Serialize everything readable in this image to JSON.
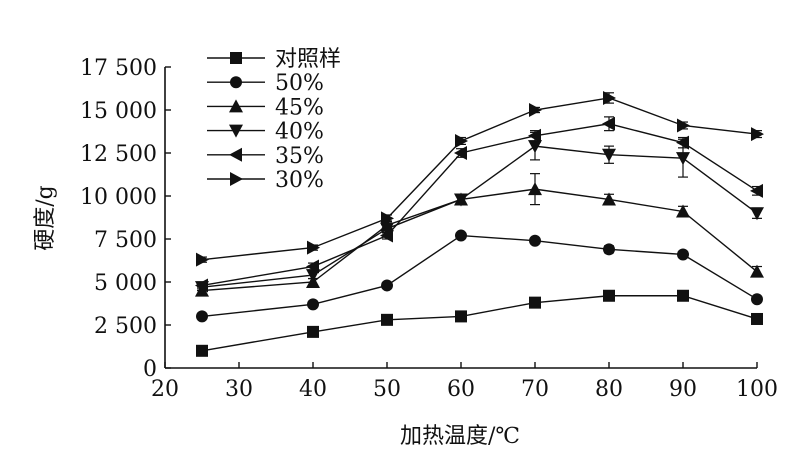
{
  "chart_data": {
    "type": "line",
    "title": "",
    "xlabel": "加热温度/℃",
    "ylabel": "硬度/g",
    "x": [
      25,
      40,
      50,
      60,
      70,
      80,
      90,
      100
    ],
    "xlim": [
      20,
      100
    ],
    "ylim": [
      0,
      17500
    ],
    "x_ticks": [
      20,
      30,
      40,
      50,
      60,
      70,
      80,
      90,
      100
    ],
    "x_tick_labels": [
      "20",
      "30",
      "40",
      "50",
      "60",
      "70",
      "80",
      "90",
      "100"
    ],
    "y_ticks": [
      0,
      2500,
      5000,
      7500,
      10000,
      12500,
      15000,
      17500
    ],
    "y_tick_labels": [
      "0",
      "2 500",
      "5 000",
      "7 500",
      "10 000",
      "12 500",
      "15 000",
      "17 500"
    ],
    "grid": false,
    "legend_position": "top-left",
    "color": "#111111",
    "series": [
      {
        "name": "对照样",
        "marker": "square",
        "values": [
          1000,
          2100,
          2800,
          3000,
          3800,
          4200,
          4200,
          2850
        ],
        "errors": [
          100,
          150,
          120,
          120,
          150,
          200,
          180,
          150
        ]
      },
      {
        "name": "50%",
        "marker": "circle",
        "values": [
          3000,
          3700,
          4800,
          7700,
          7400,
          6900,
          6600,
          4000
        ],
        "errors": [
          150,
          150,
          150,
          150,
          150,
          200,
          150,
          150
        ]
      },
      {
        "name": "45%",
        "marker": "triangle-up",
        "values": [
          4500,
          5000,
          8300,
          9800,
          10400,
          9800,
          9100,
          5600
        ],
        "errors": [
          200,
          200,
          250,
          250,
          900,
          300,
          300,
          300
        ]
      },
      {
        "name": "40%",
        "marker": "triangle-down",
        "values": [
          4700,
          5400,
          8100,
          9800,
          12900,
          12400,
          12200,
          9000
        ],
        "errors": [
          200,
          200,
          250,
          300,
          800,
          500,
          1100,
          300
        ]
      },
      {
        "name": "35%",
        "marker": "triangle-left",
        "values": [
          4800,
          5900,
          7700,
          12500,
          13500,
          14200,
          13100,
          10300
        ],
        "errors": [
          200,
          200,
          200,
          250,
          300,
          400,
          300,
          250
        ]
      },
      {
        "name": "30%",
        "marker": "triangle-right",
        "values": [
          6300,
          7000,
          8700,
          13200,
          15000,
          15700,
          14100,
          13600
        ],
        "errors": [
          150,
          150,
          200,
          200,
          150,
          300,
          200,
          200
        ]
      }
    ]
  }
}
